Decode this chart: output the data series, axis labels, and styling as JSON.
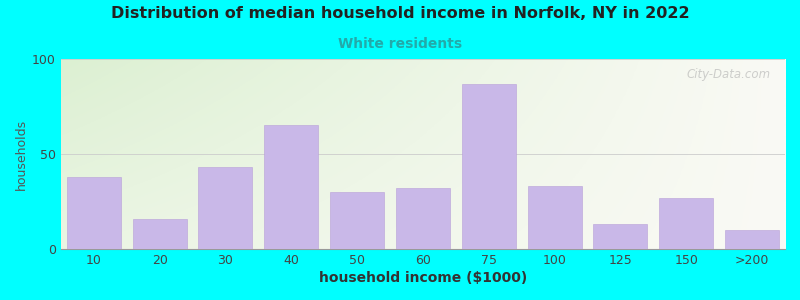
{
  "title": "Distribution of median household income in Norfolk, NY in 2022",
  "subtitle": "White residents",
  "xlabel": "household income ($1000)",
  "ylabel": "households",
  "categories": [
    "10",
    "20",
    "30",
    "40",
    "50",
    "60",
    "75",
    "100",
    "125",
    "150",
    ">200"
  ],
  "values": [
    38,
    16,
    43,
    65,
    30,
    32,
    87,
    33,
    13,
    27,
    10
  ],
  "bar_color": "#c9b8e8",
  "bar_edgecolor": "#b8a0d8",
  "title_color": "#222222",
  "subtitle_color": "#22aaaa",
  "ylabel_color": "#555555",
  "xlabel_color": "#333333",
  "background_outer": "#00ffff",
  "ylim": [
    0,
    100
  ],
  "yticks": [
    0,
    50,
    100
  ],
  "watermark": "City-Data.com"
}
